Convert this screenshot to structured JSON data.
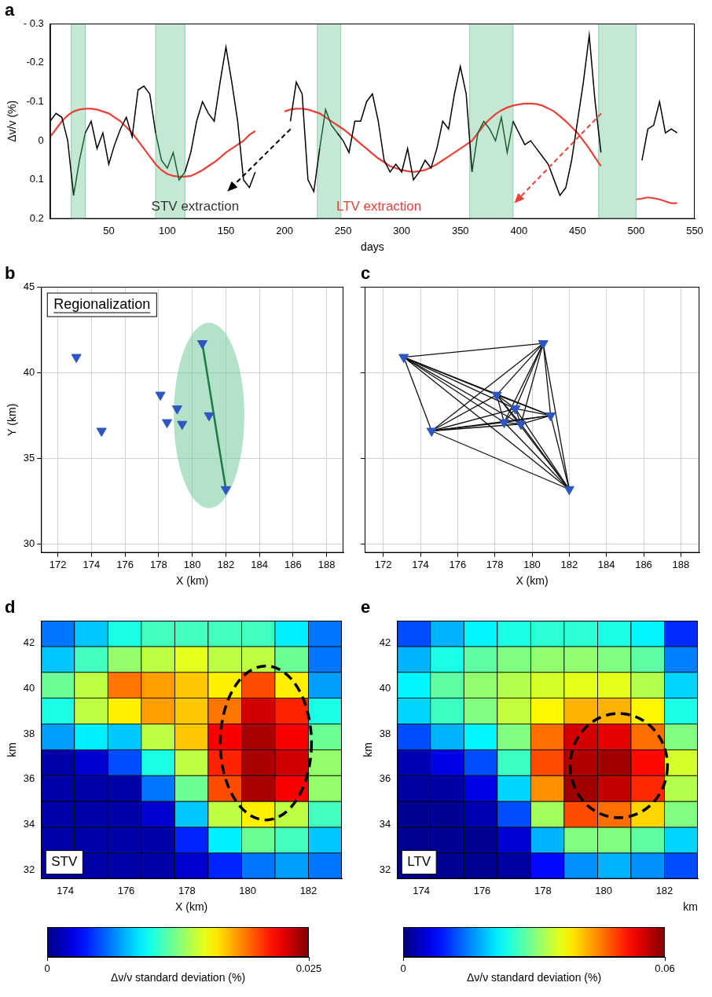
{
  "chart_data": [
    {
      "type": "line",
      "panel_label": "a",
      "y_label": "Δv/v (%)",
      "x_label": "days",
      "xlim": [
        0,
        550
      ],
      "xticks": [
        50,
        100,
        150,
        200,
        250,
        300,
        350,
        400,
        450,
        500,
        550
      ],
      "ylim": [
        0.2,
        -0.3
      ],
      "yticks": [
        {
          "value": -0.3,
          "label": "- 0.3"
        },
        -0.2,
        -0.1,
        0,
        0.1,
        0.2
      ],
      "grid": false,
      "x": [
        0,
        5,
        10,
        15,
        20,
        25,
        30,
        35,
        40,
        45,
        50,
        55,
        60,
        65,
        70,
        75,
        80,
        85,
        90,
        95,
        100,
        105,
        110,
        115,
        120,
        125,
        130,
        135,
        140,
        145,
        150,
        155,
        160,
        165,
        170,
        175,
        180,
        185,
        190,
        195,
        200,
        205,
        210,
        215,
        220,
        225,
        230,
        235,
        240,
        245,
        250,
        255,
        260,
        265,
        270,
        275,
        280,
        285,
        290,
        295,
        300,
        305,
        310,
        315,
        320,
        325,
        330,
        335,
        340,
        345,
        350,
        355,
        360,
        365,
        370,
        375,
        380,
        385,
        390,
        395,
        400,
        405,
        410,
        415,
        420,
        425,
        430,
        435,
        440,
        445,
        450,
        455,
        460,
        465,
        470,
        475,
        480,
        485,
        490,
        495,
        500,
        505,
        510,
        515,
        520,
        525,
        530,
        535
      ],
      "series": [
        {
          "color": "#000000",
          "values": [
            -0.05,
            -0.07,
            -0.06,
            0,
            0.14,
            0.05,
            -0.02,
            -0.05,
            0.02,
            -0.02,
            0.06,
            0.01,
            -0.03,
            -0.06,
            -0.01,
            -0.13,
            -0.14,
            -0.12,
            -0.02,
            0.05,
            0.07,
            0.03,
            0.1,
            0.08,
            0.03,
            -0.05,
            -0.1,
            -0.07,
            -0.05,
            -0.15,
            -0.24,
            -0.15,
            -0.05,
            0.1,
            0.12,
            0.08,
            null,
            null,
            null,
            null,
            null,
            -0.05,
            -0.15,
            -0.12,
            0.1,
            0.13,
            0.02,
            -0.08,
            -0.04,
            -0.02,
            0,
            0.03,
            -0.05,
            -0.05,
            -0.1,
            -0.12,
            -0.05,
            0.05,
            0.08,
            0.06,
            0.08,
            0.02,
            0.1,
            0.08,
            0.05,
            0.07,
            0.02,
            -0.05,
            -0.03,
            -0.12,
            -0.19,
            -0.12,
            0.08,
            -0.02,
            -0.05,
            -0.03,
            0,
            -0.06,
            0.03,
            -0.05,
            -0.02,
            0.01,
            0,
            0.02,
            0.04,
            0.06,
            0.1,
            0.14,
            0.12,
            0.05,
            -0.05,
            -0.15,
            -0.27,
            -0.1,
            0.03,
            null,
            null,
            null,
            null,
            null,
            null,
            0.05,
            -0.03,
            -0.04,
            -0.1,
            -0.02,
            -0.03,
            -0.02
          ]
        },
        {
          "color": "#e8413a",
          "values": [
            -0.01,
            -0.03,
            -0.05,
            -0.065,
            -0.075,
            -0.08,
            -0.082,
            -0.082,
            -0.08,
            -0.075,
            -0.07,
            -0.06,
            -0.05,
            -0.035,
            -0.02,
            0,
            0.02,
            0.04,
            0.06,
            0.075,
            0.085,
            0.09,
            0.092,
            0.092,
            0.09,
            0.083,
            0.075,
            0.065,
            0.055,
            0.043,
            0.03,
            0.02,
            0.01,
            0,
            -0.015,
            -0.025,
            null,
            null,
            null,
            null,
            -0.075,
            -0.08,
            -0.082,
            -0.082,
            -0.08,
            -0.075,
            -0.07,
            -0.06,
            -0.05,
            -0.04,
            -0.03,
            -0.018,
            -0.005,
            0.008,
            0.02,
            0.033,
            0.045,
            0.055,
            0.065,
            0.07,
            0.075,
            0.078,
            0.08,
            0.078,
            0.075,
            0.068,
            0.06,
            0.05,
            0.04,
            0.03,
            0.02,
            0.01,
            0,
            -0.02,
            -0.04,
            -0.055,
            -0.068,
            -0.078,
            -0.085,
            -0.09,
            -0.093,
            -0.095,
            -0.095,
            -0.094,
            -0.09,
            -0.083,
            -0.075,
            -0.063,
            -0.05,
            -0.035,
            -0.02,
            0,
            0.02,
            0.043,
            0.065,
            null,
            null,
            null,
            null,
            null,
            0.15,
            0.148,
            0.145,
            0.147,
            0.15,
            0.155,
            0.16,
            0.16
          ]
        }
      ],
      "shaded_intervals": [
        [
          18,
          30
        ],
        [
          90,
          115
        ],
        [
          228,
          248
        ],
        [
          358,
          395
        ],
        [
          468,
          500
        ]
      ],
      "shade_color": "#c4e8d4",
      "annotations": [
        {
          "text": "STV extraction",
          "color": "#333333"
        },
        {
          "text": "LTV extraction",
          "color": "#e8413a"
        }
      ]
    },
    {
      "type": "scatter",
      "panel_label": "b",
      "x_label": "X (km)",
      "y_label": "Y (km)",
      "xlim": [
        171,
        189
      ],
      "xticks": [
        172,
        174,
        176,
        178,
        180,
        182,
        184,
        186,
        188
      ],
      "ylim": [
        29.5,
        45
      ],
      "yticks": [
        30,
        35,
        40,
        45
      ],
      "grid": true,
      "marker": "triangle",
      "color": "#2f55c0",
      "x": [
        173.1,
        174.6,
        178.1,
        179.1,
        178.5,
        179.4,
        181.0,
        180.6,
        182.0
      ],
      "values": [
        40.9,
        36.6,
        38.7,
        37.9,
        37.1,
        37.0,
        37.5,
        41.7,
        33.2
      ],
      "annotations": [
        "Regionalization"
      ],
      "highlight_ellipse": {
        "center": [
          181.0,
          37.5
        ],
        "radii": [
          2.1,
          5.4
        ],
        "color": "#7fcfa2"
      },
      "highlight_pair": [
        7,
        8
      ]
    },
    {
      "type": "network",
      "panel_label": "c",
      "x_label": "X (km)",
      "xlim": [
        171,
        189
      ],
      "xticks": [
        172,
        174,
        176,
        178,
        180,
        182,
        184,
        186,
        188
      ],
      "ylim": [
        29.5,
        45
      ],
      "yticks": [
        30,
        35,
        40,
        45
      ],
      "grid": true,
      "tick_labels": "x",
      "marker": "triangle",
      "color": "#2f55c0",
      "x": [
        173.1,
        174.6,
        178.1,
        179.1,
        178.5,
        179.4,
        181.0,
        180.6,
        182.0
      ],
      "values": [
        40.9,
        36.6,
        38.7,
        37.9,
        37.1,
        37.0,
        37.5,
        41.7,
        33.2
      ]
    },
    {
      "type": "heatmap",
      "panel_label": "d",
      "x_label": "X (km)",
      "y_label": "km",
      "xlim": [
        173.2,
        183.1
      ],
      "xticks": [
        174,
        176,
        178,
        180,
        182
      ],
      "ylim": [
        31.6,
        43.0
      ],
      "yticks": [
        32,
        34,
        36,
        38,
        40,
        42
      ],
      "x_edges": [
        173.2,
        174.3,
        175.4,
        176.5,
        177.6,
        178.7,
        179.8,
        180.9,
        182.0,
        183.1
      ],
      "y_edges": [
        31.6,
        32.74,
        33.88,
        35.02,
        36.16,
        37.3,
        38.44,
        39.58,
        40.72,
        41.86,
        43.0
      ],
      "cells": [
        [
          0.001,
          0.001,
          0.001,
          0.001,
          0.002,
          0.004,
          0.006,
          0.007,
          0.006
        ],
        [
          0.001,
          0.001,
          0.001,
          0.001,
          0.004,
          0.009,
          0.012,
          0.011,
          0.008
        ],
        [
          0.001,
          0.001,
          0.001,
          0.002,
          0.008,
          0.014,
          0.016,
          0.014,
          0.011
        ],
        [
          0.001,
          0.001,
          0.001,
          0.006,
          0.012,
          0.02,
          0.024,
          0.022,
          0.013
        ],
        [
          0.001,
          0.002,
          0.005,
          0.01,
          0.014,
          0.021,
          0.024,
          0.023,
          0.013
        ],
        [
          0.007,
          0.009,
          0.008,
          0.014,
          0.017,
          0.022,
          0.024,
          0.022,
          0.012
        ],
        [
          0.01,
          0.014,
          0.016,
          0.018,
          0.017,
          0.019,
          0.023,
          0.021,
          0.01
        ],
        [
          0.012,
          0.014,
          0.019,
          0.018,
          0.017,
          0.016,
          0.02,
          0.016,
          0.007
        ],
        [
          0.008,
          0.011,
          0.013,
          0.014,
          0.015,
          0.014,
          0.014,
          0.012,
          0.006
        ],
        [
          0.006,
          0.008,
          0.01,
          0.011,
          0.011,
          0.011,
          0.011,
          0.009,
          0.006
        ]
      ],
      "colorbar": {
        "label": "Δν/ν standard deviation (%)",
        "lim": [
          0,
          0.025
        ],
        "ticks": [
          0,
          0.025
        ]
      },
      "annotations": [
        "STV"
      ],
      "highlight_ellipse": {
        "center": [
          180.6,
          37.6
        ],
        "radii": [
          1.5,
          3.4
        ],
        "color": "#000000",
        "line_style": "dashed"
      }
    },
    {
      "type": "heatmap",
      "panel_label": "e",
      "x_label": "km",
      "y_label": "km",
      "xlim": [
        173.2,
        183.1
      ],
      "xticks": [
        174,
        176,
        178,
        180,
        182
      ],
      "ylim": [
        31.6,
        43.0
      ],
      "yticks": [
        32,
        34,
        36,
        38,
        40,
        42
      ],
      "x_edges": [
        173.2,
        174.3,
        175.4,
        176.5,
        177.6,
        178.7,
        179.8,
        180.9,
        182.0,
        183.1
      ],
      "y_edges": [
        31.6,
        32.74,
        33.88,
        35.02,
        36.16,
        37.3,
        38.44,
        39.58,
        40.72,
        41.86,
        43.0
      ],
      "cells": [
        [
          0.001,
          0.001,
          0.001,
          0.002,
          0.008,
          0.016,
          0.018,
          0.016,
          0.012
        ],
        [
          0.001,
          0.001,
          0.001,
          0.005,
          0.018,
          0.03,
          0.03,
          0.028,
          0.02
        ],
        [
          0.001,
          0.001,
          0.003,
          0.012,
          0.032,
          0.048,
          0.046,
          0.04,
          0.03
        ],
        [
          0.002,
          0.002,
          0.006,
          0.02,
          0.044,
          0.058,
          0.056,
          0.05,
          0.033
        ],
        [
          0.003,
          0.006,
          0.012,
          0.026,
          0.048,
          0.057,
          0.058,
          0.052,
          0.035
        ],
        [
          0.012,
          0.018,
          0.022,
          0.03,
          0.046,
          0.055,
          0.054,
          0.046,
          0.03
        ],
        [
          0.02,
          0.026,
          0.03,
          0.034,
          0.038,
          0.042,
          0.042,
          0.038,
          0.024
        ],
        [
          0.022,
          0.028,
          0.031,
          0.033,
          0.035,
          0.036,
          0.036,
          0.033,
          0.02
        ],
        [
          0.018,
          0.024,
          0.028,
          0.03,
          0.031,
          0.031,
          0.03,
          0.028,
          0.015
        ],
        [
          0.012,
          0.018,
          0.022,
          0.024,
          0.025,
          0.025,
          0.024,
          0.022,
          0.01
        ]
      ],
      "colorbar": {
        "label": "Δν/ν standard deviation (%)",
        "lim": [
          0,
          0.06
        ],
        "ticks": [
          0,
          0.06
        ]
      },
      "annotations": [
        "LTV"
      ],
      "highlight_ellipse": {
        "center": [
          180.5,
          36.6
        ],
        "radii": [
          1.6,
          2.3
        ],
        "color": "#000000",
        "line_style": "dashed"
      }
    }
  ]
}
